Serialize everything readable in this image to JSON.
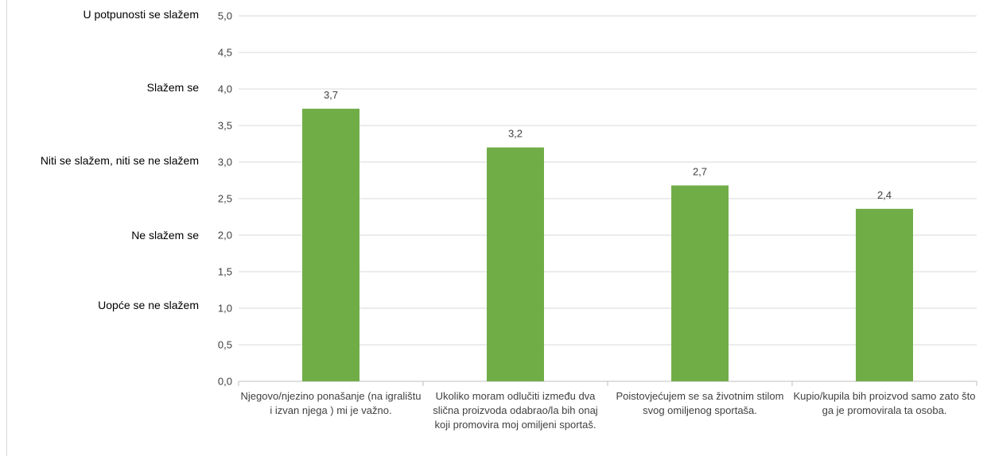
{
  "chart_data": {
    "type": "bar",
    "categories": [
      "Njegovo/njezino ponašanje (na igralištu i izvan njega ) mi je važno.",
      "Ukoliko moram odlučiti između dva slična proizvoda odabrao/la bih onaj koji promovira moj omiljeni sportaš.",
      "Poistovjećujem se sa životnim stilom svog omiljenog sportaša.",
      "Kupio/kupila bih proizvod samo zato što ga je promovirala ta osoba."
    ],
    "values": [
      3.7,
      3.2,
      2.7,
      2.4
    ],
    "plotted_values": [
      3.73,
      3.2,
      2.68,
      2.36
    ],
    "data_labels": [
      "3,7",
      "3,2",
      "2,7",
      "2,4"
    ],
    "ylim": [
      0,
      5
    ],
    "yticks": [
      "0,0",
      "0,5",
      "1,0",
      "1,5",
      "2,0",
      "2,5",
      "3,0",
      "3,5",
      "4,0",
      "4,5",
      "5,0"
    ],
    "scale_labels": [
      {
        "label": "U potpunosti se slažem",
        "value": 5.0
      },
      {
        "label": "Slažem se",
        "value": 4.0
      },
      {
        "label": "Niti se slažem, niti se ne slažem",
        "value": 3.0
      },
      {
        "label": "Ne slažem se",
        "value": 2.0
      },
      {
        "label": "Uopće se ne slažem",
        "value": 1.0
      }
    ],
    "grid": true,
    "bar_color": "#70ad47",
    "title": "",
    "xlabel": "",
    "ylabel": ""
  }
}
